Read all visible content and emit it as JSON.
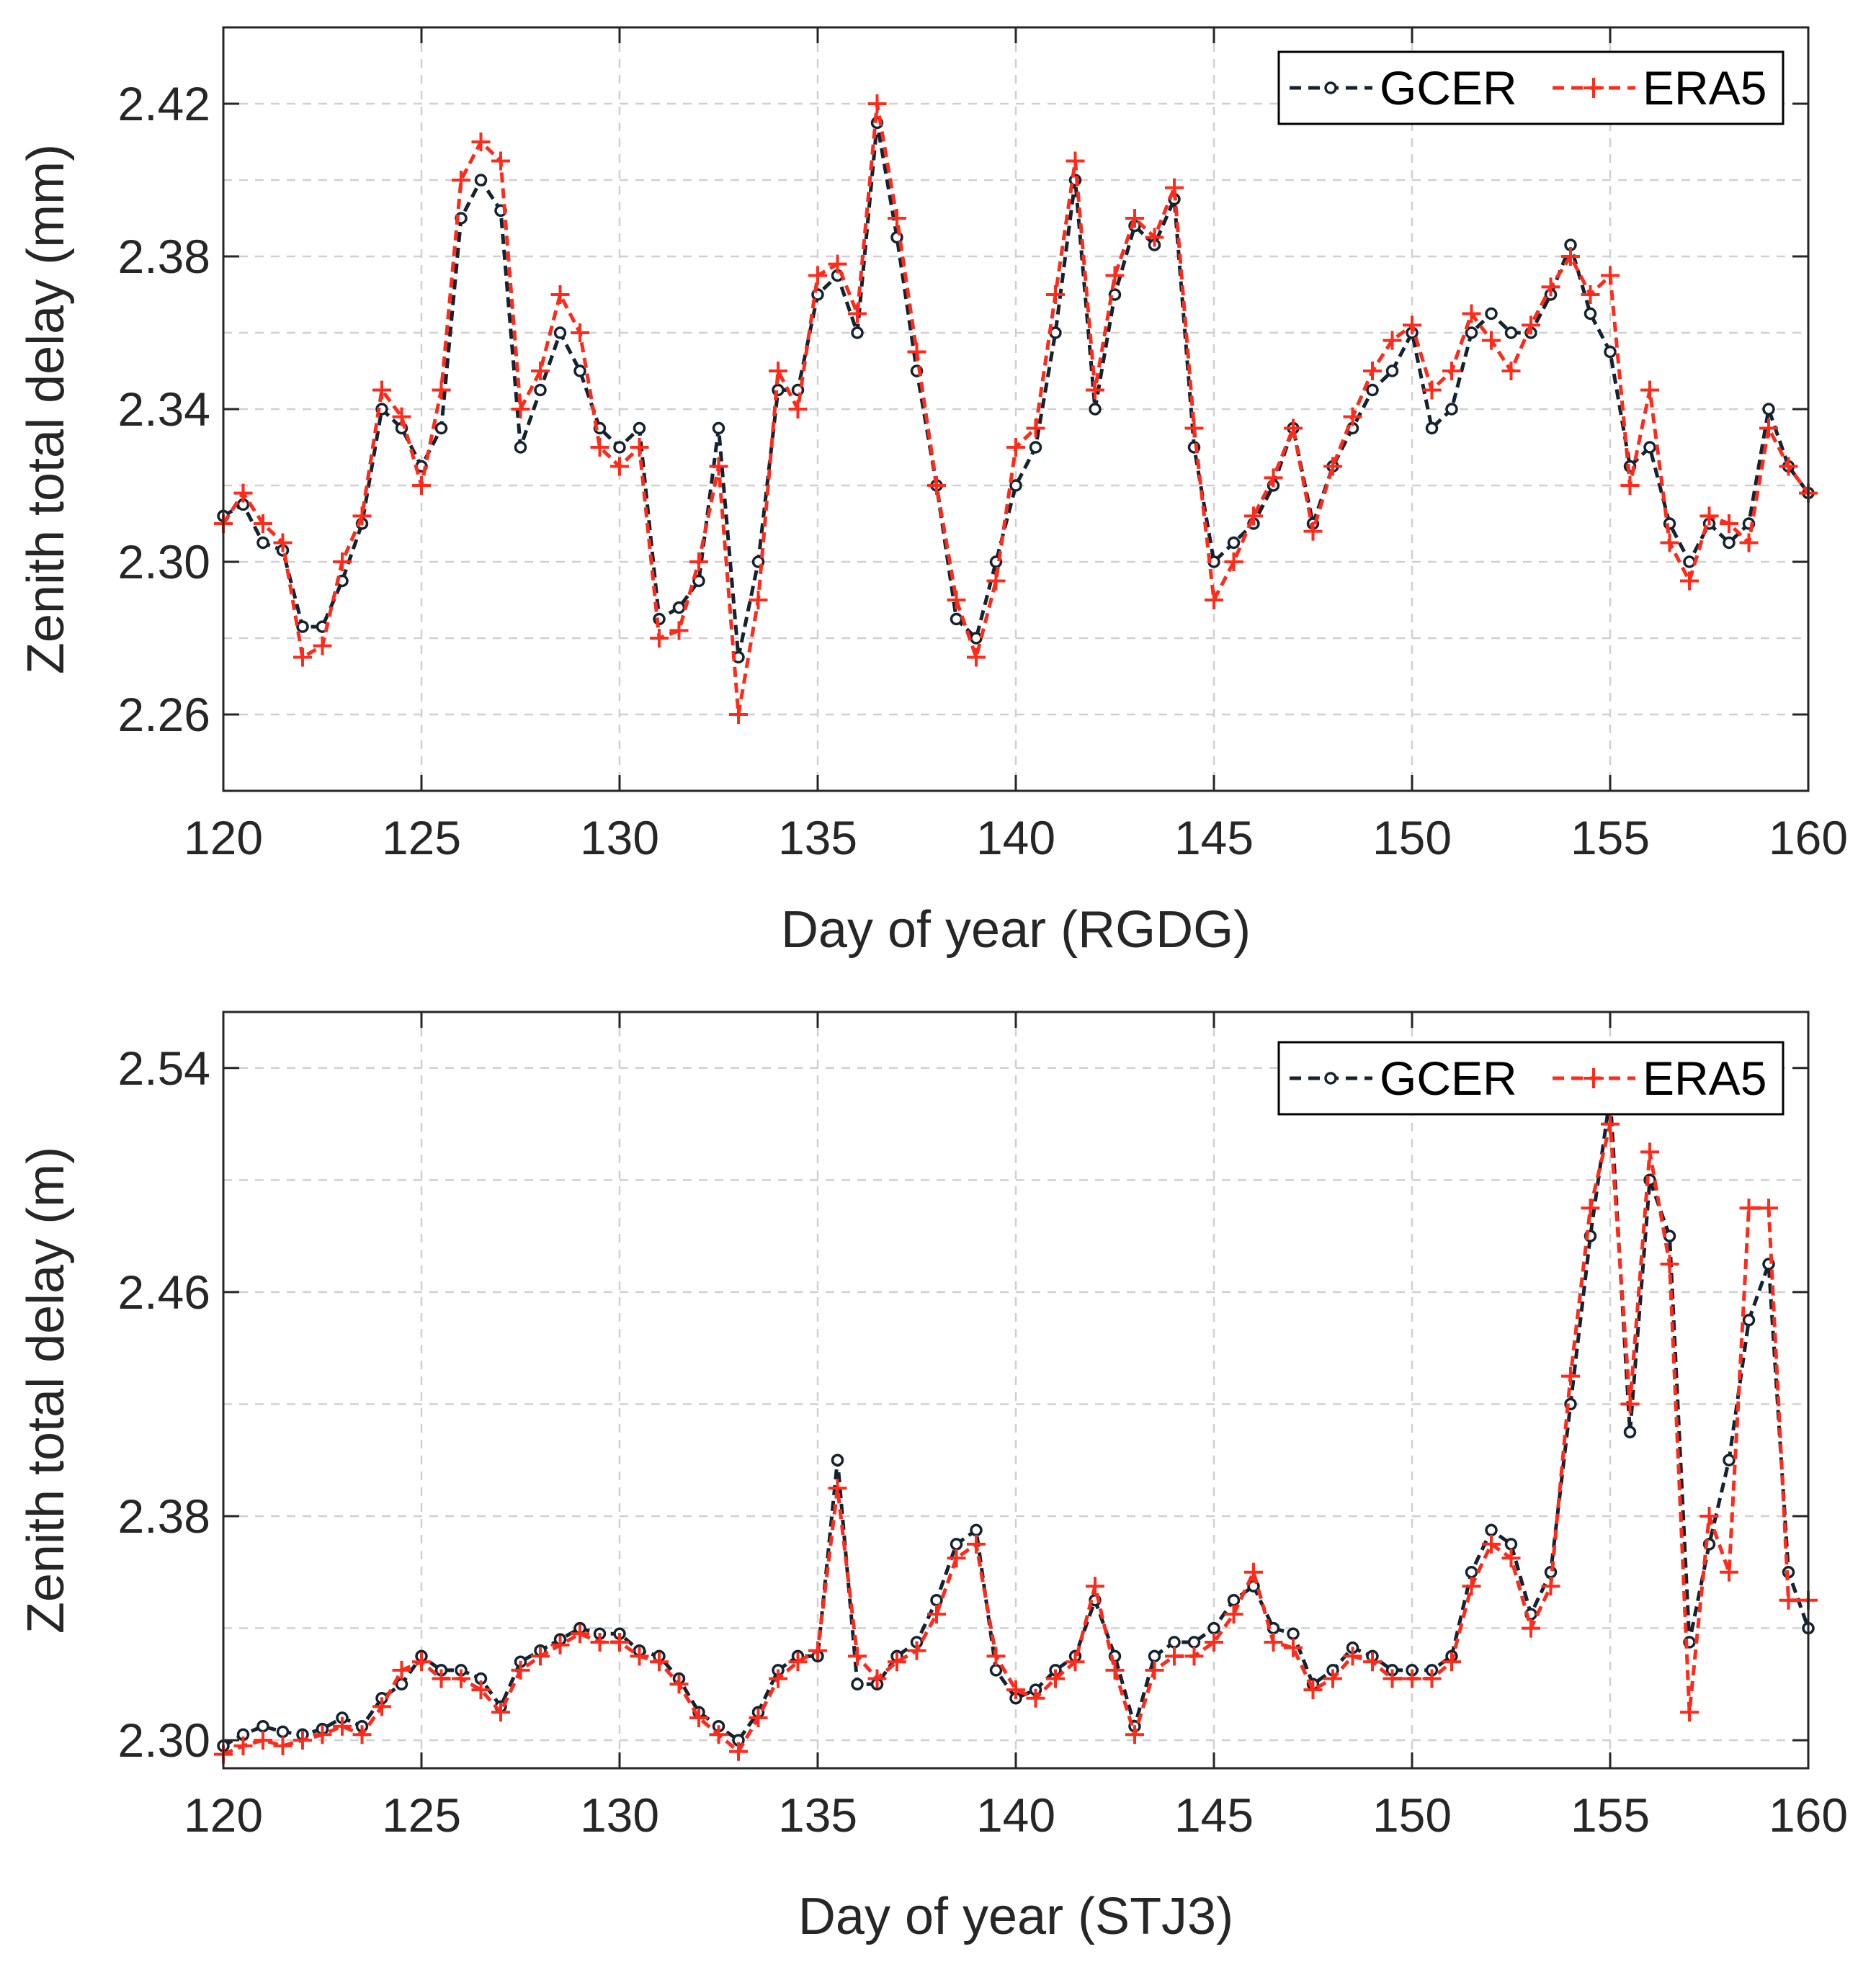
{
  "colors": {
    "gcer": "#14232f",
    "era5": "#ff2a1a",
    "grid": "#d0d0d0",
    "axis": "#262626"
  },
  "chart_data": [
    {
      "type": "line",
      "xlabel": "Day of year (RGDG)",
      "ylabel": "Zenith total delay (mm)",
      "xlim": [
        120,
        160
      ],
      "ylim": [
        2.24,
        2.44
      ],
      "xticks": [
        120,
        125,
        130,
        135,
        140,
        145,
        150,
        155,
        160
      ],
      "xtick_labels": [
        "120",
        "125",
        "130",
        "135",
        "140",
        "145",
        "150",
        "155",
        "160"
      ],
      "yticks": [
        2.26,
        2.3,
        2.34,
        2.38,
        2.42
      ],
      "ytick_labels": [
        "2.26",
        "2.30",
        "2.34",
        "2.38",
        "2.42"
      ],
      "grid": true,
      "legend": {
        "placement": "top-right",
        "labels": [
          "GCER",
          "ERA5"
        ]
      },
      "series": [
        {
          "name": "GCER",
          "style": "dashed line with circle markers",
          "x": [
            120,
            120.5,
            121,
            121.5,
            122,
            122.5,
            123,
            123.5,
            124,
            124.5,
            125,
            125.5,
            126,
            126.5,
            127,
            127.5,
            128,
            128.5,
            129,
            129.5,
            130,
            130.5,
            131,
            131.5,
            132,
            132.5,
            133,
            133.5,
            134,
            134.5,
            135,
            135.5,
            136,
            136.5,
            137,
            137.5,
            138,
            138.5,
            139,
            139.5,
            140,
            140.5,
            141,
            141.5,
            142,
            142.5,
            143,
            143.5,
            144,
            144.5,
            145,
            145.5,
            146,
            146.5,
            147,
            147.5,
            148,
            148.5,
            149,
            149.5,
            150,
            150.5,
            151,
            151.5,
            152,
            152.5,
            153,
            153.5,
            154,
            154.5,
            155,
            155.5,
            156,
            156.5,
            157,
            157.5,
            158,
            158.5,
            159,
            159.5,
            160
          ],
          "values": [
            2.312,
            2.315,
            2.305,
            2.303,
            2.283,
            2.283,
            2.295,
            2.31,
            2.34,
            2.335,
            2.325,
            2.335,
            2.39,
            2.4,
            2.392,
            2.33,
            2.345,
            2.36,
            2.35,
            2.335,
            2.33,
            2.335,
            2.285,
            2.288,
            2.295,
            2.335,
            2.275,
            2.3,
            2.345,
            2.345,
            2.37,
            2.375,
            2.36,
            2.415,
            2.385,
            2.35,
            2.32,
            2.285,
            2.28,
            2.3,
            2.32,
            2.33,
            2.36,
            2.4,
            2.34,
            2.37,
            2.388,
            2.383,
            2.395,
            2.33,
            2.3,
            2.305,
            2.31,
            2.32,
            2.335,
            2.31,
            2.325,
            2.335,
            2.345,
            2.35,
            2.36,
            2.335,
            2.34,
            2.36,
            2.365,
            2.36,
            2.36,
            2.37,
            2.383,
            2.365,
            2.355,
            2.325,
            2.33,
            2.31,
            2.3,
            2.31,
            2.305,
            2.31,
            2.34,
            2.325,
            2.318
          ]
        },
        {
          "name": "ERA5",
          "style": "dashed line with plus markers",
          "x": [
            120,
            120.5,
            121,
            121.5,
            122,
            122.5,
            123,
            123.5,
            124,
            124.5,
            125,
            125.5,
            126,
            126.5,
            127,
            127.5,
            128,
            128.5,
            129,
            129.5,
            130,
            130.5,
            131,
            131.5,
            132,
            132.5,
            133,
            133.5,
            134,
            134.5,
            135,
            135.5,
            136,
            136.5,
            137,
            137.5,
            138,
            138.5,
            139,
            139.5,
            140,
            140.5,
            141,
            141.5,
            142,
            142.5,
            143,
            143.5,
            144,
            144.5,
            145,
            145.5,
            146,
            146.5,
            147,
            147.5,
            148,
            148.5,
            149,
            149.5,
            150,
            150.5,
            151,
            151.5,
            152,
            152.5,
            153,
            153.5,
            154,
            154.5,
            155,
            155.5,
            156,
            156.5,
            157,
            157.5,
            158,
            158.5,
            159,
            159.5,
            160
          ],
          "values": [
            2.31,
            2.318,
            2.31,
            2.305,
            2.275,
            2.278,
            2.3,
            2.312,
            2.345,
            2.338,
            2.32,
            2.345,
            2.4,
            2.41,
            2.405,
            2.34,
            2.35,
            2.37,
            2.36,
            2.33,
            2.325,
            2.33,
            2.28,
            2.282,
            2.3,
            2.325,
            2.26,
            2.29,
            2.35,
            2.34,
            2.375,
            2.378,
            2.365,
            2.42,
            2.39,
            2.355,
            2.32,
            2.29,
            2.275,
            2.295,
            2.33,
            2.335,
            2.37,
            2.405,
            2.345,
            2.375,
            2.39,
            2.385,
            2.398,
            2.335,
            2.29,
            2.3,
            2.312,
            2.322,
            2.335,
            2.308,
            2.325,
            2.338,
            2.35,
            2.358,
            2.362,
            2.345,
            2.35,
            2.365,
            2.358,
            2.35,
            2.362,
            2.372,
            2.38,
            2.37,
            2.375,
            2.32,
            2.345,
            2.305,
            2.295,
            2.312,
            2.31,
            2.305,
            2.335,
            2.325,
            2.318
          ]
        }
      ]
    },
    {
      "type": "line",
      "xlabel": "Day of year (STJ3)",
      "ylabel": "Zenith total delay (m)",
      "xlim": [
        120,
        160
      ],
      "ylim": [
        2.29,
        2.56
      ],
      "xticks": [
        120,
        125,
        130,
        135,
        140,
        145,
        150,
        155,
        160
      ],
      "xtick_labels": [
        "120",
        "125",
        "130",
        "135",
        "140",
        "145",
        "150",
        "155",
        "160"
      ],
      "yticks": [
        2.3,
        2.38,
        2.46,
        2.54
      ],
      "ytick_labels": [
        "2.30",
        "2.38",
        "2.46",
        "2.54"
      ],
      "grid": true,
      "legend": {
        "placement": "top-right",
        "labels": [
          "GCER",
          "ERA5"
        ]
      },
      "series": [
        {
          "name": "GCER",
          "style": "dashed line with circle markers",
          "x": [
            120,
            120.5,
            121,
            121.5,
            122,
            122.5,
            123,
            123.5,
            124,
            124.5,
            125,
            125.5,
            126,
            126.5,
            127,
            127.5,
            128,
            128.5,
            129,
            129.5,
            130,
            130.5,
            131,
            131.5,
            132,
            132.5,
            133,
            133.5,
            134,
            134.5,
            135,
            135.5,
            136,
            136.5,
            137,
            137.5,
            138,
            138.5,
            139,
            139.5,
            140,
            140.5,
            141,
            141.5,
            142,
            142.5,
            143,
            143.5,
            144,
            144.5,
            145,
            145.5,
            146,
            146.5,
            147,
            147.5,
            148,
            148.5,
            149,
            149.5,
            150,
            150.5,
            151,
            151.5,
            152,
            152.5,
            153,
            153.5,
            154,
            154.5,
            155,
            155.5,
            156,
            156.5,
            157,
            157.5,
            158,
            158.5,
            159,
            159.5,
            160
          ],
          "values": [
            2.298,
            2.302,
            2.305,
            2.303,
            2.302,
            2.304,
            2.308,
            2.305,
            2.315,
            2.32,
            2.33,
            2.325,
            2.325,
            2.322,
            2.312,
            2.328,
            2.332,
            2.336,
            2.34,
            2.338,
            2.338,
            2.332,
            2.33,
            2.322,
            2.31,
            2.305,
            2.3,
            2.31,
            2.325,
            2.33,
            2.33,
            2.4,
            2.32,
            2.32,
            2.33,
            2.335,
            2.35,
            2.37,
            2.375,
            2.325,
            2.315,
            2.318,
            2.325,
            2.33,
            2.35,
            2.33,
            2.305,
            2.33,
            2.335,
            2.335,
            2.34,
            2.35,
            2.355,
            2.34,
            2.338,
            2.32,
            2.325,
            2.333,
            2.33,
            2.325,
            2.325,
            2.325,
            2.33,
            2.36,
            2.375,
            2.37,
            2.345,
            2.36,
            2.42,
            2.48,
            2.53,
            2.41,
            2.5,
            2.48,
            2.335,
            2.37,
            2.4,
            2.45,
            2.47,
            2.36,
            2.34
          ]
        },
        {
          "name": "ERA5",
          "style": "dashed line with plus markers",
          "x": [
            120,
            120.5,
            121,
            121.5,
            122,
            122.5,
            123,
            123.5,
            124,
            124.5,
            125,
            125.5,
            126,
            126.5,
            127,
            127.5,
            128,
            128.5,
            129,
            129.5,
            130,
            130.5,
            131,
            131.5,
            132,
            132.5,
            133,
            133.5,
            134,
            134.5,
            135,
            135.5,
            136,
            136.5,
            137,
            137.5,
            138,
            138.5,
            139,
            139.5,
            140,
            140.5,
            141,
            141.5,
            142,
            142.5,
            143,
            143.5,
            144,
            144.5,
            145,
            145.5,
            146,
            146.5,
            147,
            147.5,
            148,
            148.5,
            149,
            149.5,
            150,
            150.5,
            151,
            151.5,
            152,
            152.5,
            153,
            153.5,
            154,
            154.5,
            155,
            155.5,
            156,
            156.5,
            157,
            157.5,
            158,
            158.5,
            159,
            159.5,
            160
          ],
          "values": [
            2.295,
            2.298,
            2.3,
            2.298,
            2.3,
            2.302,
            2.305,
            2.302,
            2.312,
            2.325,
            2.328,
            2.322,
            2.322,
            2.318,
            2.31,
            2.325,
            2.33,
            2.334,
            2.338,
            2.335,
            2.335,
            2.33,
            2.328,
            2.32,
            2.308,
            2.302,
            2.296,
            2.308,
            2.322,
            2.328,
            2.332,
            2.39,
            2.33,
            2.322,
            2.328,
            2.332,
            2.345,
            2.365,
            2.37,
            2.33,
            2.318,
            2.315,
            2.322,
            2.328,
            2.355,
            2.325,
            2.302,
            2.325,
            2.33,
            2.33,
            2.335,
            2.345,
            2.36,
            2.335,
            2.333,
            2.318,
            2.322,
            2.33,
            2.328,
            2.322,
            2.322,
            2.322,
            2.328,
            2.355,
            2.37,
            2.365,
            2.34,
            2.355,
            2.43,
            2.49,
            2.52,
            2.42,
            2.51,
            2.47,
            2.31,
            2.38,
            2.36,
            2.49,
            2.49,
            2.35,
            2.35
          ]
        }
      ]
    }
  ]
}
